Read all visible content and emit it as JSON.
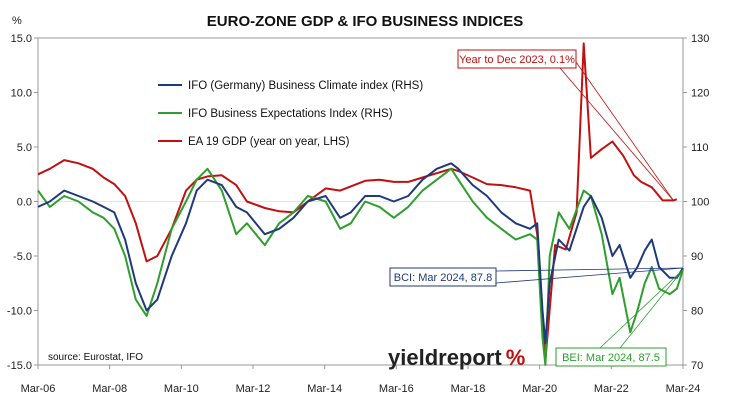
{
  "chart_data": {
    "type": "line",
    "title": "EURO-ZONE GDP & IFO BUSINESS INDICES",
    "left_axis_unit": "%",
    "x_tick_labels": [
      "Mar-06",
      "Mar-08",
      "Mar-10",
      "Mar-12",
      "Mar-14",
      "Mar-16",
      "Mar-18",
      "Mar-20",
      "Mar-22",
      "Mar-24"
    ],
    "x_range": [
      2006.17,
      2024.17
    ],
    "ylim_left": [
      -15,
      15
    ],
    "left_tick_labels": [
      "15.0",
      "10.0",
      "5.0",
      "0.0",
      "-5.0",
      "-10.0",
      "-15.0"
    ],
    "ylim_right": [
      70,
      130
    ],
    "right_tick_labels": [
      "130",
      "120",
      "110",
      "100",
      "90",
      "80",
      "70"
    ],
    "grid": false,
    "legend_position": "top-left",
    "series": [
      {
        "name": "IFO (Germany) Business Climate index (RHS)",
        "axis": "right",
        "color": "#1f3a7a",
        "points": [
          [
            2006.17,
            99
          ],
          [
            2006.5,
            100
          ],
          [
            2006.9,
            102
          ],
          [
            2007.3,
            101
          ],
          [
            2007.7,
            100
          ],
          [
            2008.0,
            99
          ],
          [
            2008.3,
            98
          ],
          [
            2008.6,
            93
          ],
          [
            2008.9,
            85
          ],
          [
            2009.2,
            80
          ],
          [
            2009.5,
            82
          ],
          [
            2009.9,
            90
          ],
          [
            2010.3,
            96
          ],
          [
            2010.6,
            102
          ],
          [
            2010.9,
            104
          ],
          [
            2011.3,
            103
          ],
          [
            2011.7,
            99
          ],
          [
            2012.0,
            98
          ],
          [
            2012.5,
            94
          ],
          [
            2012.9,
            95
          ],
          [
            2013.3,
            97
          ],
          [
            2013.7,
            100
          ],
          [
            2014.2,
            101
          ],
          [
            2014.6,
            97
          ],
          [
            2014.9,
            98
          ],
          [
            2015.3,
            101
          ],
          [
            2015.7,
            101
          ],
          [
            2016.1,
            100
          ],
          [
            2016.5,
            101
          ],
          [
            2016.9,
            104
          ],
          [
            2017.3,
            106
          ],
          [
            2017.7,
            107
          ],
          [
            2017.9,
            106
          ],
          [
            2018.3,
            103
          ],
          [
            2018.7,
            101
          ],
          [
            2019.1,
            98
          ],
          [
            2019.5,
            96
          ],
          [
            2019.9,
            95
          ],
          [
            2020.1,
            96
          ],
          [
            2020.25,
            80
          ],
          [
            2020.33,
            74
          ],
          [
            2020.45,
            85
          ],
          [
            2020.7,
            93
          ],
          [
            2021.0,
            91
          ],
          [
            2021.4,
            99
          ],
          [
            2021.6,
            101
          ],
          [
            2021.9,
            97
          ],
          [
            2022.2,
            90
          ],
          [
            2022.4,
            92
          ],
          [
            2022.7,
            86
          ],
          [
            2022.9,
            88
          ],
          [
            2023.1,
            91
          ],
          [
            2023.3,
            93
          ],
          [
            2023.5,
            88
          ],
          [
            2023.8,
            86
          ],
          [
            2024.0,
            86
          ],
          [
            2024.17,
            87.8
          ]
        ]
      },
      {
        "name": "IFO Business Expectations Index (RHS)",
        "axis": "right",
        "color": "#2e9e2e",
        "points": [
          [
            2006.17,
            102
          ],
          [
            2006.5,
            99
          ],
          [
            2006.9,
            101
          ],
          [
            2007.3,
            100
          ],
          [
            2007.7,
            98
          ],
          [
            2008.0,
            97
          ],
          [
            2008.3,
            95
          ],
          [
            2008.6,
            90
          ],
          [
            2008.9,
            82
          ],
          [
            2009.2,
            79
          ],
          [
            2009.5,
            85
          ],
          [
            2009.9,
            95
          ],
          [
            2010.3,
            100
          ],
          [
            2010.6,
            104
          ],
          [
            2010.9,
            106
          ],
          [
            2011.3,
            102
          ],
          [
            2011.7,
            94
          ],
          [
            2012.0,
            96
          ],
          [
            2012.5,
            92
          ],
          [
            2012.9,
            96
          ],
          [
            2013.3,
            98
          ],
          [
            2013.7,
            101
          ],
          [
            2014.2,
            100
          ],
          [
            2014.6,
            95
          ],
          [
            2014.9,
            96
          ],
          [
            2015.3,
            100
          ],
          [
            2015.7,
            99
          ],
          [
            2016.1,
            97
          ],
          [
            2016.5,
            99
          ],
          [
            2016.9,
            102
          ],
          [
            2017.3,
            104
          ],
          [
            2017.7,
            106
          ],
          [
            2017.9,
            104
          ],
          [
            2018.3,
            100
          ],
          [
            2018.7,
            97
          ],
          [
            2019.1,
            95
          ],
          [
            2019.5,
            93
          ],
          [
            2019.9,
            94
          ],
          [
            2020.1,
            93
          ],
          [
            2020.25,
            75
          ],
          [
            2020.33,
            70
          ],
          [
            2020.45,
            90
          ],
          [
            2020.7,
            98
          ],
          [
            2021.0,
            95
          ],
          [
            2021.4,
            102
          ],
          [
            2021.6,
            101
          ],
          [
            2021.9,
            94
          ],
          [
            2022.2,
            83
          ],
          [
            2022.4,
            86
          ],
          [
            2022.7,
            76
          ],
          [
            2022.9,
            80
          ],
          [
            2023.1,
            85
          ],
          [
            2023.3,
            88
          ],
          [
            2023.5,
            84
          ],
          [
            2023.8,
            83
          ],
          [
            2024.0,
            84
          ],
          [
            2024.17,
            87.5
          ]
        ]
      },
      {
        "name": "EA 19 GDP (year on year, LHS)",
        "axis": "left",
        "color": "#c01010",
        "points": [
          [
            2006.17,
            2.5
          ],
          [
            2006.5,
            3.0
          ],
          [
            2006.9,
            3.8
          ],
          [
            2007.3,
            3.5
          ],
          [
            2007.7,
            3.0
          ],
          [
            2008.0,
            2.2
          ],
          [
            2008.3,
            1.6
          ],
          [
            2008.6,
            0.5
          ],
          [
            2008.9,
            -2.0
          ],
          [
            2009.2,
            -5.5
          ],
          [
            2009.5,
            -5.0
          ],
          [
            2009.9,
            -2.5
          ],
          [
            2010.3,
            1.0
          ],
          [
            2010.6,
            2.0
          ],
          [
            2010.9,
            2.3
          ],
          [
            2011.3,
            2.4
          ],
          [
            2011.7,
            1.5
          ],
          [
            2012.0,
            0.0
          ],
          [
            2012.5,
            -0.6
          ],
          [
            2012.9,
            -0.9
          ],
          [
            2013.3,
            -1.0
          ],
          [
            2013.7,
            0.0
          ],
          [
            2014.2,
            1.2
          ],
          [
            2014.6,
            1.0
          ],
          [
            2015.3,
            1.9
          ],
          [
            2015.7,
            2.0
          ],
          [
            2016.1,
            1.8
          ],
          [
            2016.5,
            1.8
          ],
          [
            2016.9,
            2.2
          ],
          [
            2017.3,
            2.6
          ],
          [
            2017.7,
            3.0
          ],
          [
            2017.9,
            2.8
          ],
          [
            2018.3,
            2.2
          ],
          [
            2018.7,
            1.6
          ],
          [
            2019.1,
            1.5
          ],
          [
            2019.5,
            1.3
          ],
          [
            2019.9,
            1.0
          ],
          [
            2020.1,
            -3.0
          ],
          [
            2020.33,
            -14.6
          ],
          [
            2020.6,
            -4.0
          ],
          [
            2020.9,
            -4.4
          ],
          [
            2021.2,
            -1.0
          ],
          [
            2021.4,
            14.5
          ],
          [
            2021.6,
            4.0
          ],
          [
            2021.9,
            4.8
          ],
          [
            2022.2,
            5.5
          ],
          [
            2022.5,
            4.2
          ],
          [
            2022.8,
            2.4
          ],
          [
            2023.0,
            1.8
          ],
          [
            2023.3,
            1.3
          ],
          [
            2023.6,
            0.1
          ],
          [
            2023.9,
            0.1
          ],
          [
            2024.0,
            0.2
          ]
        ]
      }
    ]
  },
  "legend": [
    {
      "label": "IFO (Germany) Business Climate index (RHS)",
      "color": "#1f3a7a"
    },
    {
      "label": "IFO Business Expectations Index (RHS)",
      "color": "#2e9e2e"
    },
    {
      "label": "EA 19 GDP (year on year, LHS)",
      "color": "#c01010"
    }
  ],
  "annotations": {
    "gdp": {
      "text": "Year to Dec 2023, 0.1%",
      "color": "#c01010",
      "x": 2023.9,
      "y": 0.1,
      "axis": "left"
    },
    "bci": {
      "text": "BCI: Mar 2024, 87.8",
      "color": "#1f3a7a",
      "x": 2024.17,
      "y": 87.8,
      "axis": "right"
    },
    "bei": {
      "text": "BEI: Mar 2024, 87.5",
      "color": "#2e9e2e",
      "x": 2024.17,
      "y": 87.5,
      "axis": "right"
    }
  },
  "source": "source: Eurostat, IFO",
  "brand": {
    "text": "yieldreport",
    "symbol": "%"
  }
}
